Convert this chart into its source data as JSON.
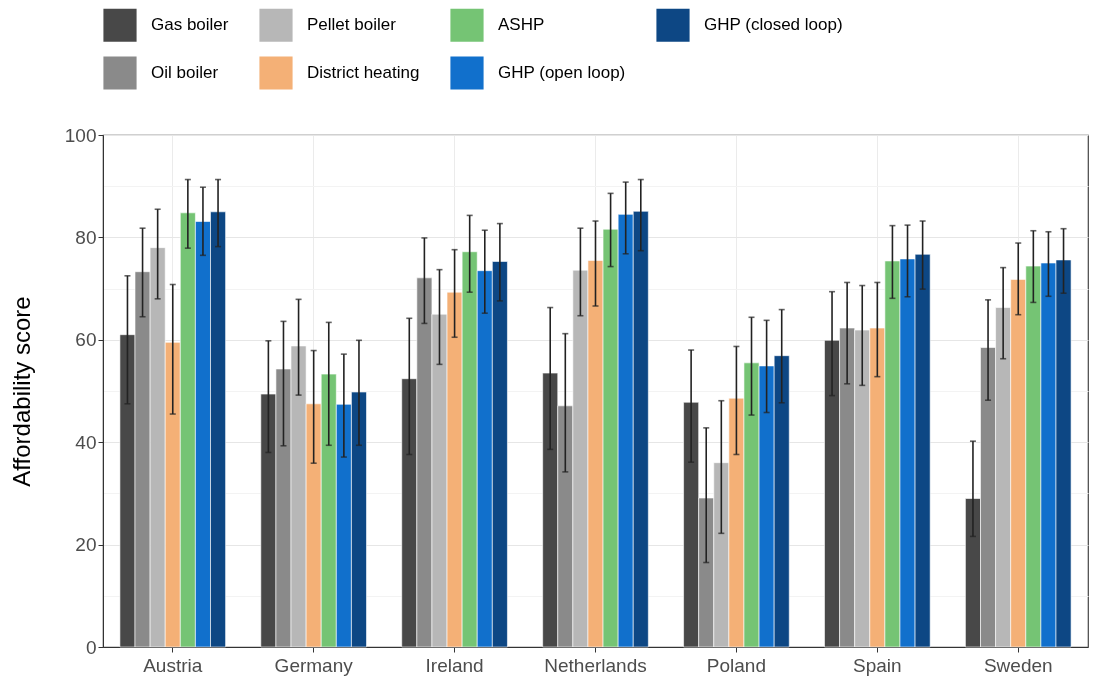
{
  "chart_data": {
    "type": "bar",
    "ylabel": "Affordability score",
    "categories": [
      "Austria",
      "Germany",
      "Ireland",
      "Netherlands",
      "Poland",
      "Spain",
      "Sweden"
    ],
    "ylim": [
      0,
      100
    ],
    "yticks": [
      0,
      {
        "value": 10,
        "label": null
      },
      20,
      {
        "value": 30,
        "label": null
      },
      40,
      {
        "value": 50,
        "label": null
      },
      60,
      {
        "value": 70,
        "label": null
      },
      80,
      {
        "value": 90,
        "label": null
      },
      100
    ],
    "grid": true,
    "legend": "top",
    "series": [
      {
        "name": "Gas boiler",
        "color": "#484848",
        "values": [
          61.0,
          49.4,
          52.4,
          53.5,
          47.8,
          59.9,
          29.0
        ],
        "errors": [
          [
            47.5,
            72.5
          ],
          [
            38.0,
            59.8
          ],
          [
            37.6,
            64.2
          ],
          [
            38.6,
            66.3
          ],
          [
            36.1,
            58.0
          ],
          [
            49.1,
            69.4
          ],
          [
            21.6,
            40.2
          ]
        ]
      },
      {
        "name": "Oil boiler",
        "color": "#8a8a8a",
        "values": [
          73.3,
          54.3,
          72.1,
          47.1,
          29.1,
          62.3,
          58.5
        ],
        "errors": [
          [
            64.5,
            81.8
          ],
          [
            39.3,
            63.6
          ],
          [
            63.2,
            79.9
          ],
          [
            34.2,
            61.2
          ],
          [
            16.5,
            42.8
          ],
          [
            51.4,
            71.2
          ],
          [
            48.2,
            67.8
          ]
        ]
      },
      {
        "name": "Pellet boiler",
        "color": "#b7b7b7",
        "values": [
          78.0,
          58.8,
          65.0,
          73.6,
          36.0,
          61.9,
          66.3
        ],
        "errors": [
          [
            68.0,
            85.5
          ],
          [
            49.2,
            67.9
          ],
          [
            55.2,
            73.7
          ],
          [
            64.7,
            81.8
          ],
          [
            22.2,
            48.1
          ],
          [
            51.1,
            70.6
          ],
          [
            56.3,
            74.1
          ]
        ]
      },
      {
        "name": "District heating",
        "color": "#f4b076",
        "values": [
          59.5,
          47.5,
          69.3,
          75.5,
          48.6,
          62.3,
          71.8
        ],
        "errors": [
          [
            45.5,
            70.8
          ],
          [
            35.9,
            57.9
          ],
          [
            60.5,
            77.6
          ],
          [
            66.6,
            83.2
          ],
          [
            37.6,
            58.7
          ],
          [
            52.8,
            71.2
          ],
          [
            64.9,
            78.9
          ]
        ]
      },
      {
        "name": "ASHP",
        "color": "#75c474",
        "values": [
          84.8,
          53.3,
          77.2,
          81.6,
          55.5,
          75.4,
          74.4
        ],
        "errors": [
          [
            77.9,
            91.3
          ],
          [
            39.4,
            63.4
          ],
          [
            69.3,
            84.3
          ],
          [
            74.3,
            88.6
          ],
          [
            45.3,
            64.4
          ],
          [
            68.1,
            82.3
          ],
          [
            67.3,
            81.3
          ]
        ]
      },
      {
        "name": "GHP (open loop)",
        "color": "#1170cc",
        "values": [
          83.1,
          47.4,
          73.5,
          84.5,
          54.9,
          75.8,
          75.0
        ],
        "errors": [
          [
            76.5,
            89.8
          ],
          [
            37.1,
            57.2
          ],
          [
            65.2,
            81.4
          ],
          [
            76.8,
            90.8
          ],
          [
            45.8,
            63.8
          ],
          [
            68.4,
            82.4
          ],
          [
            68.5,
            81.1
          ]
        ]
      },
      {
        "name": "GHP (closed loop)",
        "color": "#0d4784",
        "values": [
          85.0,
          49.8,
          75.3,
          85.1,
          56.9,
          76.7,
          75.6
        ],
        "errors": [
          [
            78.2,
            91.3
          ],
          [
            39.4,
            59.9
          ],
          [
            67.6,
            82.7
          ],
          [
            77.4,
            91.3
          ],
          [
            47.7,
            65.9
          ],
          [
            69.9,
            83.2
          ],
          [
            69.1,
            81.7
          ]
        ]
      }
    ]
  }
}
